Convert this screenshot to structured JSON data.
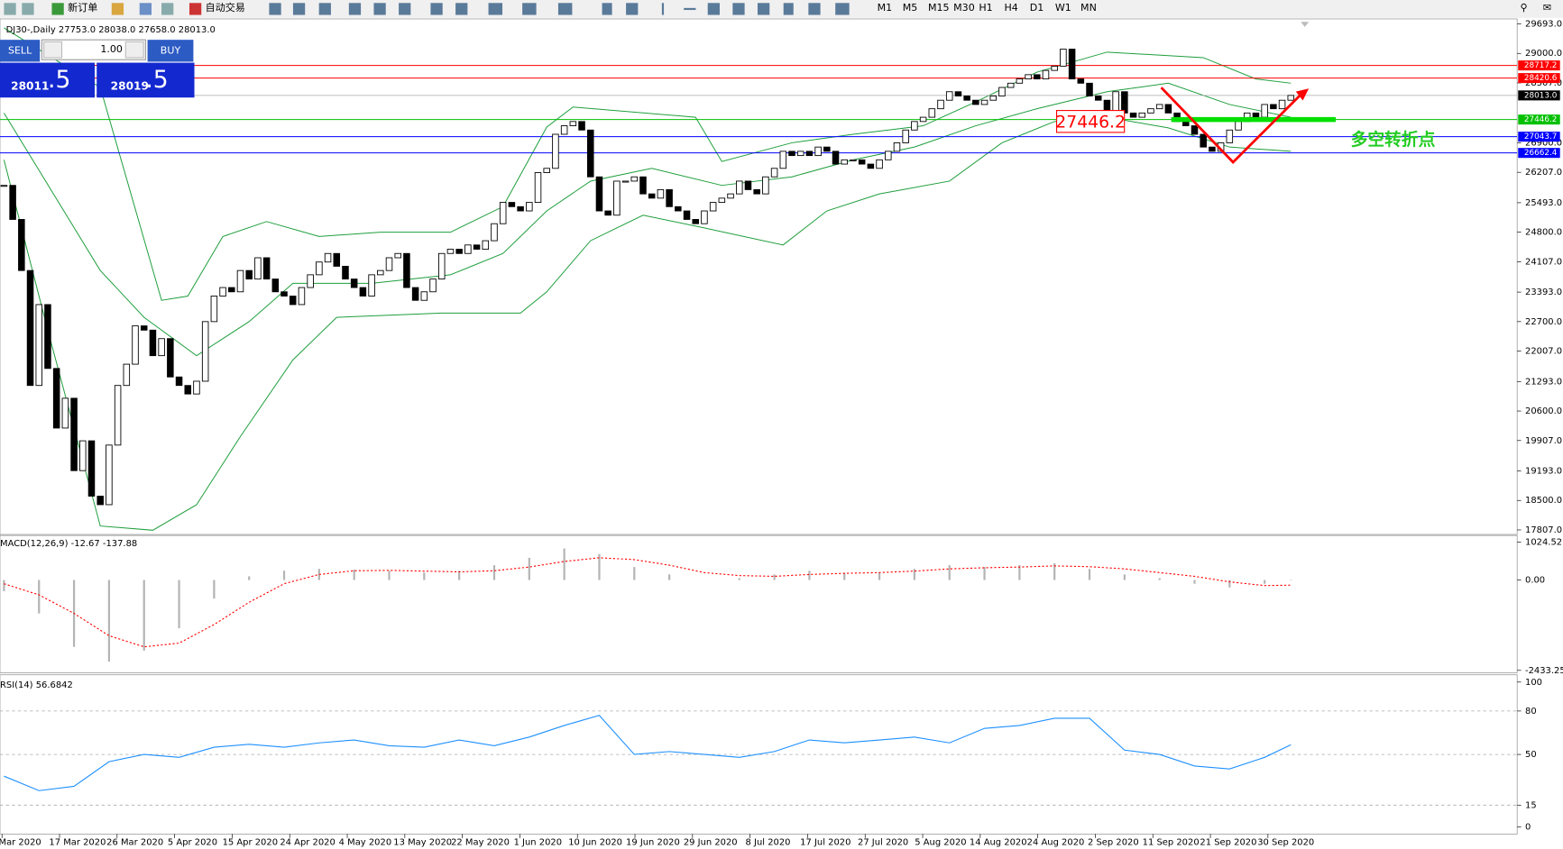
{
  "toolbar": {
    "new_order": "新订单",
    "auto_trading": "自动交易",
    "timeframes": [
      "M1",
      "M5",
      "M15",
      "M30",
      "H1",
      "H4",
      "D1",
      "W1",
      "MN"
    ]
  },
  "trade_panel": {
    "sell": "SELL",
    "buy": "BUY",
    "lot": "1.00",
    "bid_big": "28011",
    "bid_small": ".5",
    "ask_big": "28019",
    "ask_small": ".5"
  },
  "chart_data": [
    {
      "type": "candlestick",
      "title": "DJ30-,Daily  27753.0 28038.0 27658.0 28013.0",
      "values": [
        25900,
        25100,
        23900,
        21200,
        23100,
        21600,
        20200,
        20900,
        19200,
        19900,
        18600,
        18400,
        19800,
        21200,
        21700,
        22600,
        22500,
        21900,
        22300,
        21400,
        21200,
        21000,
        21300,
        22700,
        23300,
        23500,
        23400,
        23900,
        23700,
        24200,
        23700,
        23400,
        23300,
        23100,
        23500,
        23800,
        24100,
        24300,
        24000,
        23700,
        23500,
        23300,
        23800,
        23900,
        24200,
        24300,
        23500,
        23200,
        23400,
        23700,
        24300,
        24400,
        24300,
        24500,
        24400,
        24600,
        25000,
        25500,
        25400,
        25300,
        25500,
        26200,
        26300,
        27100,
        27300,
        27400,
        27200,
        26100,
        25300,
        25200,
        26000,
        26000,
        26100,
        25700,
        25600,
        25800,
        25400,
        25300,
        25100,
        25000,
        25300,
        25500,
        25600,
        25700,
        26000,
        25800,
        25700,
        26100,
        26300,
        26700,
        26600,
        26700,
        26600,
        26800,
        26700,
        26400,
        26500,
        26500,
        26400,
        26300,
        26500,
        26700,
        26900,
        27200,
        27400,
        27500,
        27700,
        27900,
        28100,
        28000,
        27900,
        27800,
        27900,
        28000,
        28200,
        28300,
        28400,
        28500,
        28400,
        28600,
        28700,
        29100,
        28400,
        28300,
        28000,
        27900,
        27500,
        28100,
        27600,
        27500,
        27600,
        27700,
        27800,
        27600,
        27400,
        27300,
        27100,
        26800,
        26700,
        26900,
        27200,
        27400,
        27600,
        27500,
        27800,
        27700,
        27900,
        28013
      ],
      "ylim": [
        17700,
        29810
      ],
      "yticks": [
        {
          "value": 29693,
          "label": "29693.0"
        },
        {
          "value": 29000,
          "label": "29000.0"
        },
        {
          "value": 28307,
          "label": "28307.0"
        },
        {
          "value": 26900,
          "label": "26900.0"
        },
        {
          "value": 26207,
          "label": "26207.0"
        },
        {
          "value": 25493,
          "label": "25493.0"
        },
        {
          "value": 24800,
          "label": "24800.0"
        },
        {
          "value": 24107,
          "label": "24107.0"
        },
        {
          "value": 23393,
          "label": "23393.0"
        },
        {
          "value": 22700,
          "label": "22700.0"
        },
        {
          "value": 22007,
          "label": "22007.0"
        },
        {
          "value": 21293,
          "label": "21293.0"
        },
        {
          "value": 20600,
          "label": "20600.0"
        },
        {
          "value": 19907,
          "label": "19907.0"
        },
        {
          "value": 19193,
          "label": "19193.0"
        },
        {
          "value": 18500,
          "label": "18500.0"
        },
        {
          "value": 17807,
          "label": "17807.0"
        }
      ],
      "current_price": {
        "value": 28013,
        "label": "28013.0"
      },
      "levels": [
        {
          "value": 28717.2,
          "color": "#ff0000"
        },
        {
          "value": 28420.6,
          "color": "#ff0000"
        },
        {
          "value": 27446.2,
          "color": "#00c000"
        },
        {
          "value": 27043.7,
          "color": "#0000ff"
        },
        {
          "value": 26662.4,
          "color": "#0000ff"
        }
      ],
      "marked_level": 27446.2,
      "annotation": "多空转折点",
      "overlays": [
        {
          "color": "#1e9e3c",
          "x": [
            0,
            11,
            18,
            21,
            25,
            30,
            36,
            43,
            51,
            57,
            62,
            65,
            79,
            82,
            90,
            97,
            105,
            111,
            118,
            126,
            137,
            143,
            147
          ],
          "values": [
            29600,
            28200,
            23200,
            23300,
            24700,
            25050,
            24700,
            24800,
            24800,
            25400,
            27270,
            27740,
            27500,
            26460,
            26900,
            27100,
            27300,
            27860,
            28560,
            29030,
            28900,
            28400,
            28300
          ]
        },
        {
          "color": "#1e9e3c",
          "x": [
            0,
            11,
            16,
            22,
            28,
            33,
            42,
            51,
            57,
            62,
            67,
            74,
            82,
            90,
            97,
            104,
            111,
            118,
            126,
            133,
            140,
            147
          ],
          "values": [
            27600,
            23900,
            22800,
            21900,
            22700,
            23600,
            23600,
            23800,
            24300,
            25300,
            26000,
            26300,
            25900,
            26100,
            26500,
            26800,
            27300,
            27700,
            28100,
            28300,
            27800,
            27500
          ]
        },
        {
          "color": "#1e9e3c",
          "x": [
            0,
            5,
            11,
            17,
            22,
            27,
            33,
            38,
            50,
            59,
            62,
            67,
            73,
            80,
            89,
            94,
            100,
            108,
            114,
            120,
            126,
            133,
            140,
            147
          ],
          "values": [
            26500,
            22500,
            17900,
            17800,
            18400,
            20000,
            21800,
            22800,
            22900,
            22900,
            23400,
            24600,
            25200,
            24900,
            24500,
            25300,
            25700,
            26000,
            26900,
            27400,
            27500,
            27250,
            26800,
            26700
          ]
        }
      ],
      "xtick_labels": [
        "Mar 2020",
        "17 Mar 2020",
        "26 Mar 2020",
        "5 Apr 2020",
        "15 Apr 2020",
        "24 Apr 2020",
        "4 May 2020",
        "13 May 2020",
        "22 May 2020",
        "1 Jun 2020",
        "10 Jun 2020",
        "19 Jun 2020",
        "29 Jun 2020",
        "8 Jul 2020",
        "17 Jul 2020",
        "27 Jul 2020",
        "5 Aug 2020",
        "14 Aug 2020",
        "24 Aug 2020",
        "2 Sep 2020",
        "11 Sep 2020",
        "21 Sep 2020",
        "30 Sep 2020"
      ]
    },
    {
      "type": "bar",
      "title": "MACD(12,26,9) -12.67 -137.88",
      "x": [
        0,
        4,
        8,
        12,
        16,
        20,
        24,
        28,
        32,
        36,
        40,
        44,
        48,
        52,
        56,
        60,
        64,
        68,
        72,
        76,
        80,
        84,
        88,
        92,
        96,
        100,
        104,
        108,
        112,
        116,
        120,
        124,
        128,
        132,
        136,
        140,
        144,
        147
      ],
      "values": [
        -300,
        -900,
        -1800,
        -2200,
        -1900,
        -1300,
        -500,
        100,
        250,
        300,
        280,
        250,
        200,
        250,
        400,
        600,
        850,
        700,
        350,
        150,
        0,
        50,
        150,
        250,
        200,
        200,
        300,
        400,
        350,
        400,
        450,
        300,
        150,
        50,
        -100,
        -200,
        -100,
        -12.67
      ],
      "color": "#b4b4b4",
      "series": [
        {
          "color": "#ff0000",
          "values": [
            -100,
            -400,
            -900,
            -1500,
            -1800,
            -1700,
            -1200,
            -600,
            -100,
            150,
            250,
            260,
            240,
            220,
            250,
            350,
            500,
            600,
            550,
            400,
            200,
            120,
            100,
            150,
            180,
            200,
            240,
            300,
            330,
            350,
            380,
            360,
            300,
            200,
            100,
            -50,
            -150,
            -137.88
          ]
        }
      ],
      "ylim": [
        -2500,
        1200
      ],
      "yticks": [
        {
          "value": 1024.52,
          "label": "1024.52"
        },
        {
          "value": 0,
          "label": "0.00"
        },
        {
          "value": -2433.25,
          "label": "-2433.25"
        }
      ]
    },
    {
      "type": "line",
      "title": "RSI(14) 56.6842",
      "x": [
        0,
        4,
        8,
        12,
        16,
        20,
        24,
        28,
        32,
        36,
        40,
        44,
        48,
        52,
        56,
        60,
        64,
        68,
        72,
        76,
        80,
        84,
        88,
        92,
        96,
        100,
        104,
        108,
        112,
        116,
        120,
        124,
        128,
        132,
        136,
        140,
        144,
        147
      ],
      "values": [
        35,
        25,
        28,
        45,
        50,
        48,
        55,
        57,
        55,
        58,
        60,
        56,
        55,
        60,
        56,
        62,
        70,
        77,
        50,
        52,
        50,
        48,
        52,
        60,
        58,
        60,
        62,
        58,
        68,
        70,
        75,
        75,
        53,
        50,
        42,
        40,
        48,
        56.6842
      ],
      "color": "#1e90ff",
      "ylim": [
        -5,
        105
      ],
      "yticks": [
        100,
        80,
        50,
        15,
        0
      ],
      "levels": [
        80,
        50,
        15
      ]
    }
  ]
}
